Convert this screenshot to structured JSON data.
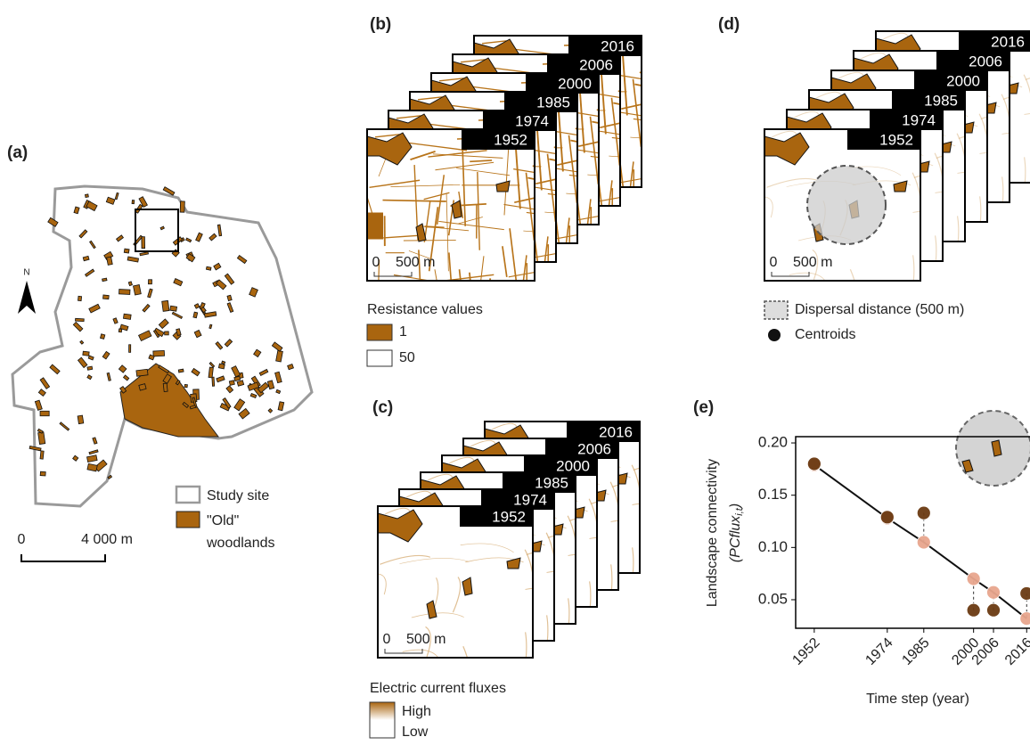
{
  "panels": {
    "a": {
      "label": "(a)",
      "north": "N",
      "scale": [
        "0",
        "4 000 m"
      ],
      "legend": [
        "Study site",
        "\"Old\"",
        "woodlands"
      ]
    },
    "b": {
      "label": "(b)",
      "years": [
        "1952",
        "1974",
        "1985",
        "2000",
        "2006",
        "2016"
      ],
      "scale": [
        "0",
        "500 m"
      ],
      "legend_title": "Resistance values",
      "legend": [
        "1",
        "50"
      ]
    },
    "c": {
      "label": "(c)",
      "years": [
        "1952",
        "1974",
        "1985",
        "2000",
        "2006",
        "2016"
      ],
      "scale": [
        "0",
        "500 m"
      ],
      "legend_title": "Electric current fluxes",
      "legend": [
        "High",
        "Low"
      ]
    },
    "d": {
      "label": "(d)",
      "years": [
        "1952",
        "1974",
        "1985",
        "2000",
        "2006",
        "2016"
      ],
      "scale": [
        "0",
        "500 m"
      ],
      "legend": [
        "Dispersal distance (500 m)",
        "Centroids"
      ]
    },
    "e": {
      "label": "(e)"
    }
  },
  "chart_data": {
    "type": "scatter",
    "x_label": "Time step (year)",
    "y_label": "Landscape connectivity",
    "y_label_formula": [
      "(PCflux",
      "i,t",
      ")"
    ],
    "x": [
      1952,
      1974,
      1985,
      2000,
      2006,
      2016
    ],
    "series": [
      {
        "color": "#6b3a12",
        "values": [
          0.18,
          0.129,
          0.133,
          0.04,
          0.04,
          0.056
        ]
      },
      {
        "color": "#e8a68e",
        "values": [
          0.179,
          0.128,
          0.105,
          0.07,
          0.057,
          0.032
        ],
        "line": true
      }
    ],
    "xlim": [
      1946.4,
      2017
    ],
    "ylim": [
      0.0227,
      0.206
    ],
    "xticks": [
      1952,
      1974,
      1985,
      2000,
      2006,
      2016
    ],
    "yticks": [
      0.05,
      {
        "value": 0.1,
        "label": "0.10"
      },
      0.15,
      {
        "value": 0.2,
        "label": "0.20"
      }
    ]
  }
}
